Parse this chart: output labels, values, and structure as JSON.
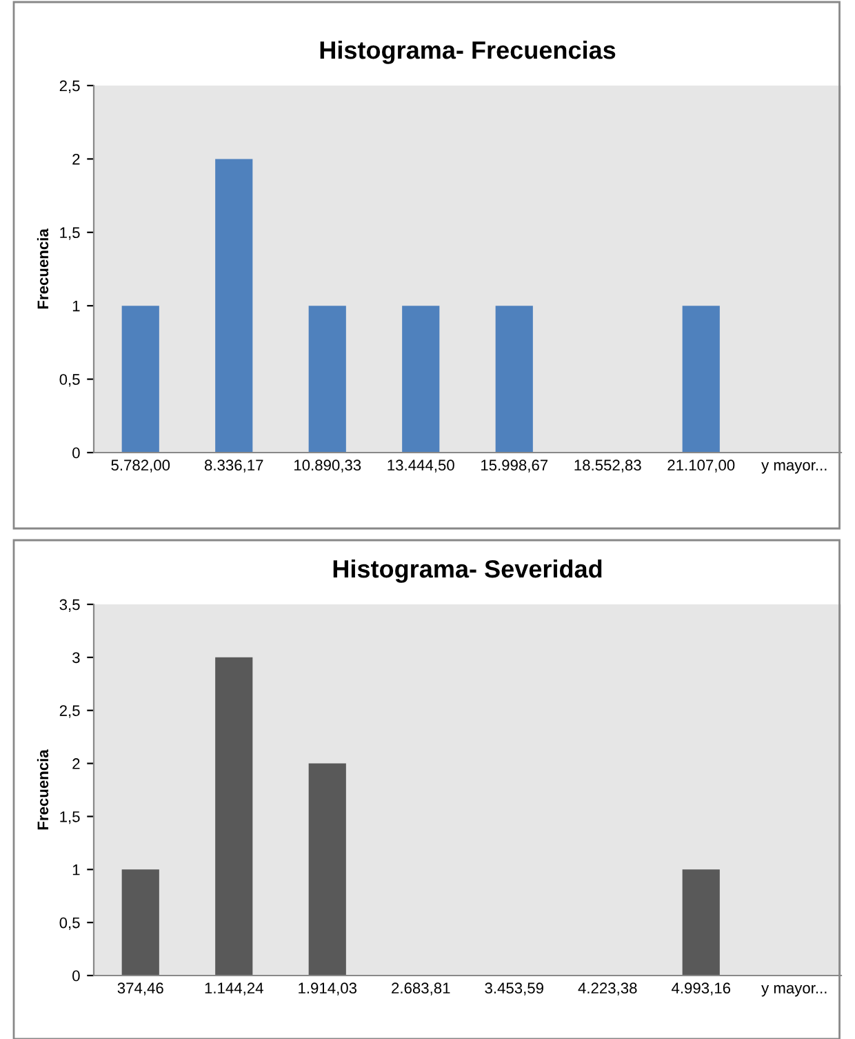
{
  "chart_data": [
    {
      "type": "bar",
      "title": "Histograma- Frecuencias",
      "ylabel": "Frecuencia",
      "categories": [
        "5.782,00",
        "8.336,17",
        "10.890,33",
        "13.444,50",
        "15.998,67",
        "18.552,83",
        "21.107,00",
        "y mayor..."
      ],
      "values": [
        1,
        2,
        1,
        1,
        1,
        0,
        1,
        0
      ],
      "color": "#4f81bd",
      "ylim": [
        0,
        2.5
      ],
      "yticks": [
        0,
        {
          "value": 0.5,
          "label": "0,5"
        },
        1,
        {
          "value": 1.5,
          "label": "1,5"
        },
        2,
        {
          "value": 2.5,
          "label": "2,5"
        }
      ],
      "grid": false,
      "legend": false
    },
    {
      "type": "bar",
      "title": "Histograma- Severidad",
      "ylabel": "Frecuencia",
      "categories": [
        "374,46",
        "1.144,24",
        "1.914,03",
        "2.683,81",
        "3.453,59",
        "4.223,38",
        "4.993,16",
        "y mayor..."
      ],
      "values": [
        1,
        3,
        2,
        0,
        0,
        0,
        1,
        0
      ],
      "color": "#595959",
      "ylim": [
        0,
        3.5
      ],
      "yticks": [
        0,
        {
          "value": 0.5,
          "label": "0,5"
        },
        1,
        {
          "value": 1.5,
          "label": "1,5"
        },
        2,
        {
          "value": 2.5,
          "label": "2,5"
        },
        3,
        {
          "value": 3.5,
          "label": "3,5"
        }
      ],
      "grid": false,
      "legend": false
    }
  ]
}
